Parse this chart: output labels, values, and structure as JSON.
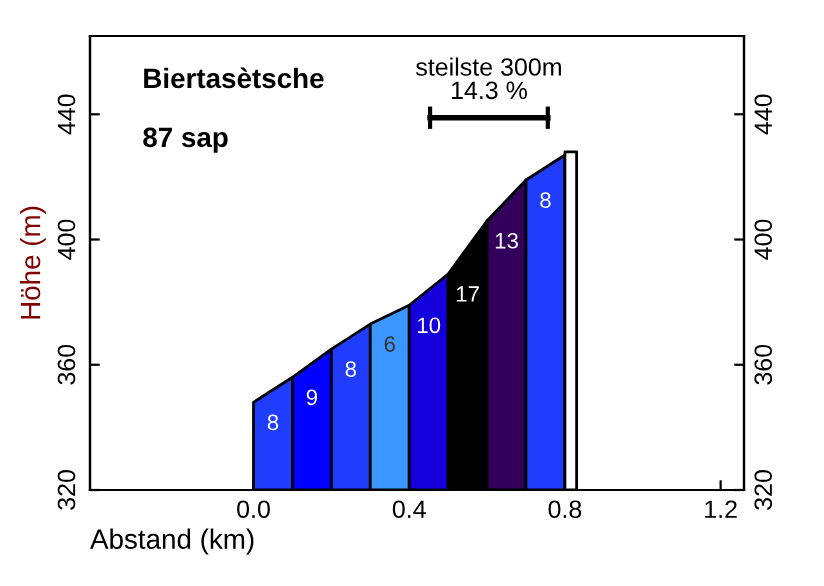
{
  "chart_data": {
    "type": "area",
    "title": "Biertasètsche",
    "subtitle": "87 sap",
    "xlabel": "Abstand (km)",
    "ylabel": "Höhe (m)",
    "xlim": [
      -0.42,
      1.26
    ],
    "xticks": [
      {
        "value": 0,
        "label": "0.0"
      },
      0.4,
      0.8,
      1.2
    ],
    "ylim": [
      320,
      465
    ],
    "yticks": [
      320,
      360,
      400,
      440
    ],
    "y2lim": [
      320,
      465
    ],
    "y2ticks": [
      320,
      360,
      400,
      440
    ],
    "series": [
      {
        "x": [
          0,
          0.1
        ],
        "values": [
          348,
          356
        ],
        "color": "#1f3cff",
        "name": "8"
      },
      {
        "x": [
          0.1,
          0.2
        ],
        "values": [
          356,
          365
        ],
        "color": "#0000ff",
        "name": "9"
      },
      {
        "x": [
          0.2,
          0.3
        ],
        "values": [
          365,
          373
        ],
        "color": "#1f3cff",
        "name": "8"
      },
      {
        "x": [
          0.3,
          0.4
        ],
        "values": [
          373,
          379
        ],
        "color": "#3c96ff",
        "name": "6"
      },
      {
        "x": [
          0.4,
          0.5
        ],
        "values": [
          379,
          389
        ],
        "color": "#1400dc",
        "name": "10"
      },
      {
        "x": [
          0.5,
          0.6
        ],
        "values": [
          389,
          406
        ],
        "color": "#000000",
        "name": "17"
      },
      {
        "x": [
          0.6,
          0.7
        ],
        "values": [
          406,
          419
        ],
        "color": "#32005a",
        "name": "13"
      },
      {
        "x": [
          0.7,
          0.8
        ],
        "values": [
          419,
          427
        ],
        "color": "#1f3cff",
        "name": "8"
      },
      {
        "x": [
          0.8,
          0.83
        ],
        "values": [
          428,
          428
        ],
        "color": "#ffffff"
      }
    ],
    "annotations": [
      "steilste 300m\n14.3 %"
    ],
    "grid": false,
    "legend": false
  }
}
